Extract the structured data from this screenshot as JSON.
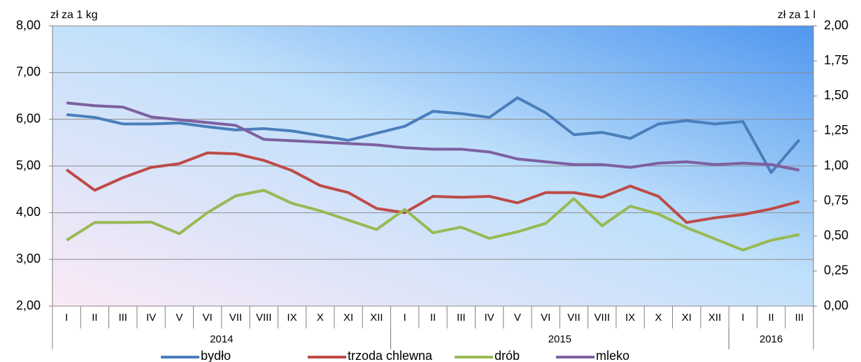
{
  "chart_data": {
    "type": "line",
    "y_label": "zł za 1 kg",
    "y2_label": "zł za 1 l",
    "categories": [
      "I",
      "II",
      "III",
      "IV",
      "V",
      "VI",
      "VII",
      "VIII",
      "IX",
      "X",
      "XI",
      "XII",
      "I",
      "II",
      "III",
      "IV",
      "V",
      "VI",
      "VII",
      "VIII",
      "IX",
      "X",
      "XI",
      "XII",
      "I",
      "II",
      "III"
    ],
    "groups": [
      {
        "label": "2014",
        "span": 12
      },
      {
        "label": "2015",
        "span": 12
      },
      {
        "label": "2016",
        "span": 3
      }
    ],
    "ylim": [
      2,
      8
    ],
    "yticks": [
      {
        "value": 2,
        "label": "2,00"
      },
      {
        "value": 3,
        "label": "3,00"
      },
      {
        "value": 4,
        "label": "4,00"
      },
      {
        "value": 5,
        "label": "5,00"
      },
      {
        "value": 6,
        "label": "6,00"
      },
      {
        "value": 7,
        "label": "7,00"
      },
      {
        "value": 8,
        "label": "8,00"
      }
    ],
    "y2lim": [
      0,
      2
    ],
    "y2ticks": [
      {
        "value": 0,
        "label": "0,00"
      },
      {
        "value": 0.25,
        "label": "0,25"
      },
      {
        "value": 0.5,
        "label": "0,50"
      },
      {
        "value": 0.75,
        "label": "0,75"
      },
      {
        "value": 1,
        "label": "1,00"
      },
      {
        "value": 1.25,
        "label": "1,25"
      },
      {
        "value": 1.5,
        "label": "1,50"
      },
      {
        "value": 1.75,
        "label": "1,75"
      },
      {
        "value": 2,
        "label": "2,00"
      }
    ],
    "grid": true,
    "legend": "bottom",
    "series": [
      {
        "name": "bydło",
        "color": "#4a7ebb",
        "values": [
          6.1,
          6.04,
          5.9,
          5.9,
          5.92,
          5.84,
          5.77,
          5.8,
          5.75,
          5.65,
          5.55,
          5.7,
          5.85,
          6.17,
          6.12,
          6.04,
          6.46,
          6.14,
          5.67,
          5.72,
          5.59,
          5.9,
          5.97,
          5.9,
          5.95,
          4.86,
          5.56
        ]
      },
      {
        "name": "trzoda chlewna",
        "color": "#be4b48",
        "values": [
          4.92,
          4.48,
          4.75,
          4.97,
          5.05,
          5.28,
          5.26,
          5.12,
          4.9,
          4.58,
          4.43,
          4.09,
          4.0,
          4.35,
          4.33,
          4.35,
          4.21,
          4.43,
          4.43,
          4.33,
          4.57,
          4.35,
          3.79,
          3.89,
          3.96,
          4.08,
          4.24
        ]
      },
      {
        "name": "drób",
        "color": "#98b954",
        "values": [
          3.41,
          3.79,
          3.79,
          3.8,
          3.55,
          4.0,
          4.36,
          4.48,
          4.2,
          4.04,
          3.84,
          3.64,
          4.07,
          3.57,
          3.69,
          3.45,
          3.59,
          3.77,
          4.3,
          3.72,
          4.14,
          3.97,
          3.68,
          3.44,
          3.2,
          3.41,
          3.53
        ]
      },
      {
        "name": "mleko",
        "color": "#7d60a0",
        "axis": "y2",
        "values": [
          1.45,
          1.43,
          1.42,
          1.35,
          1.33,
          1.31,
          1.29,
          1.19,
          1.18,
          1.17,
          1.16,
          1.15,
          1.13,
          1.12,
          1.12,
          1.1,
          1.05,
          1.03,
          1.01,
          1.01,
          0.99,
          1.02,
          1.03,
          1.01,
          1.02,
          1.01,
          0.97
        ]
      }
    ]
  }
}
